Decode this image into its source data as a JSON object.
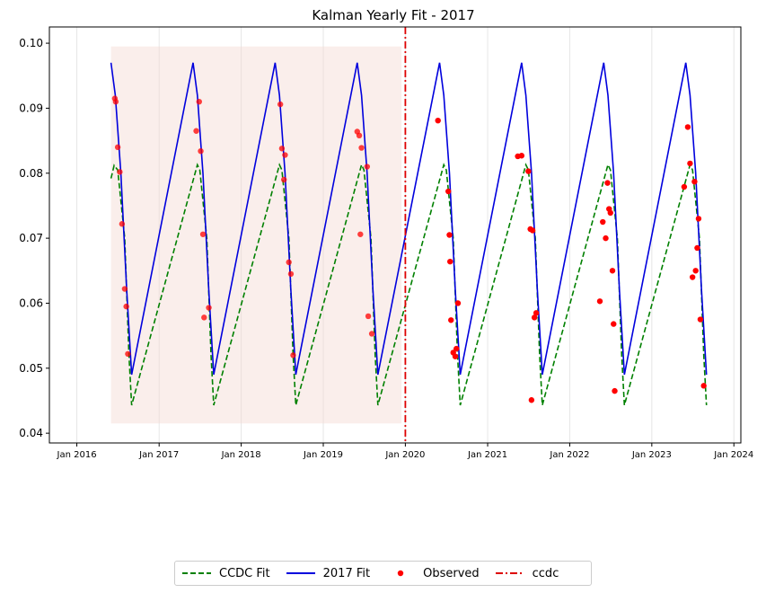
{
  "chart_data": {
    "type": "line",
    "title": "Kalman Yearly Fit - 2017",
    "xlabel": "",
    "ylabel": "",
    "xlim": [
      "2015-09-01",
      "2024-02-01"
    ],
    "ylim": [
      0.0385,
      0.1025
    ],
    "x_ticks": [
      {
        "date": "2016-01-01",
        "label": "Jan 2016"
      },
      {
        "date": "2017-01-01",
        "label": "Jan 2017"
      },
      {
        "date": "2018-01-01",
        "label": "Jan 2018"
      },
      {
        "date": "2019-01-01",
        "label": "Jan 2019"
      },
      {
        "date": "2020-01-01",
        "label": "Jan 2020"
      },
      {
        "date": "2021-01-01",
        "label": "Jan 2021"
      },
      {
        "date": "2022-01-01",
        "label": "Jan 2022"
      },
      {
        "date": "2023-01-01",
        "label": "Jan 2023"
      },
      {
        "date": "2024-01-01",
        "label": "Jan 2024"
      }
    ],
    "y_ticks": [
      0.04,
      0.05,
      0.06,
      0.07,
      0.08,
      0.09,
      0.1
    ],
    "y_tick_labels": [
      "0.04",
      "0.05",
      "0.06",
      "0.07",
      "0.08",
      "0.09",
      "0.10"
    ],
    "grid": "vertical",
    "legend_position": "bottom-center",
    "shaded_region": {
      "x": [
        "2016-06-01",
        "2019-12-15"
      ],
      "y": [
        0.0415,
        0.0995
      ],
      "color": "#f4d9d3"
    },
    "vline": {
      "name": "ccdc",
      "x": "2020-01-01",
      "color": "#dd0000"
    },
    "series": [
      {
        "name": "CCDC Fit",
        "style": "dashed",
        "color": "#008000",
        "points": [
          [
            "2016-06-01",
            0.0792
          ],
          [
            "2016-06-15",
            0.0812
          ],
          [
            "2016-07-01",
            0.0805
          ],
          [
            "2016-08-01",
            0.07
          ],
          [
            "2016-08-20",
            0.052
          ],
          [
            "2016-09-01",
            0.0443
          ],
          [
            "2017-06-20",
            0.0813
          ],
          [
            "2017-07-01",
            0.0805
          ],
          [
            "2017-08-01",
            0.07
          ],
          [
            "2017-08-20",
            0.052
          ],
          [
            "2017-09-01",
            0.0443
          ],
          [
            "2018-06-20",
            0.0813
          ],
          [
            "2018-07-01",
            0.0805
          ],
          [
            "2018-08-01",
            0.07
          ],
          [
            "2018-08-20",
            0.052
          ],
          [
            "2018-09-01",
            0.0443
          ],
          [
            "2019-06-20",
            0.0813
          ],
          [
            "2019-07-01",
            0.0805
          ],
          [
            "2019-08-01",
            0.07
          ],
          [
            "2019-08-20",
            0.052
          ],
          [
            "2019-09-01",
            0.0443
          ],
          [
            "2020-06-20",
            0.0813
          ],
          [
            "2020-07-01",
            0.0805
          ],
          [
            "2020-08-01",
            0.07
          ],
          [
            "2020-08-20",
            0.052
          ],
          [
            "2020-09-01",
            0.0443
          ],
          [
            "2021-06-20",
            0.0813
          ],
          [
            "2021-07-01",
            0.0805
          ],
          [
            "2021-08-01",
            0.07
          ],
          [
            "2021-08-20",
            0.052
          ],
          [
            "2021-09-01",
            0.0443
          ],
          [
            "2022-06-20",
            0.0813
          ],
          [
            "2022-07-01",
            0.0805
          ],
          [
            "2022-08-01",
            0.07
          ],
          [
            "2022-08-20",
            0.052
          ],
          [
            "2022-09-01",
            0.0443
          ],
          [
            "2023-06-20",
            0.0813
          ],
          [
            "2023-07-01",
            0.0805
          ],
          [
            "2023-08-01",
            0.07
          ],
          [
            "2023-08-20",
            0.052
          ],
          [
            "2023-09-01",
            0.0443
          ]
        ]
      },
      {
        "name": "2017 Fit",
        "style": "solid",
        "color": "#0000dd",
        "points": [
          [
            "2016-06-01",
            0.097
          ],
          [
            "2016-06-20",
            0.092
          ],
          [
            "2016-07-15",
            0.08
          ],
          [
            "2016-08-10",
            0.062
          ],
          [
            "2016-09-01",
            0.049
          ],
          [
            "2017-06-01",
            0.097
          ],
          [
            "2017-06-20",
            0.092
          ],
          [
            "2017-07-15",
            0.08
          ],
          [
            "2017-08-10",
            0.062
          ],
          [
            "2017-09-01",
            0.049
          ],
          [
            "2018-06-01",
            0.097
          ],
          [
            "2018-06-20",
            0.092
          ],
          [
            "2018-07-15",
            0.08
          ],
          [
            "2018-08-10",
            0.062
          ],
          [
            "2018-09-01",
            0.049
          ],
          [
            "2019-06-01",
            0.097
          ],
          [
            "2019-06-20",
            0.092
          ],
          [
            "2019-07-15",
            0.08
          ],
          [
            "2019-08-10",
            0.062
          ],
          [
            "2019-09-01",
            0.049
          ],
          [
            "2020-06-01",
            0.097
          ],
          [
            "2020-06-20",
            0.092
          ],
          [
            "2020-07-15",
            0.08
          ],
          [
            "2020-08-10",
            0.062
          ],
          [
            "2020-09-01",
            0.049
          ],
          [
            "2021-06-01",
            0.097
          ],
          [
            "2021-06-20",
            0.092
          ],
          [
            "2021-07-15",
            0.08
          ],
          [
            "2021-08-10",
            0.062
          ],
          [
            "2021-09-01",
            0.049
          ],
          [
            "2022-06-01",
            0.097
          ],
          [
            "2022-06-20",
            0.092
          ],
          [
            "2022-07-15",
            0.08
          ],
          [
            "2022-08-10",
            0.062
          ],
          [
            "2022-09-01",
            0.049
          ],
          [
            "2023-06-01",
            0.097
          ],
          [
            "2023-06-20",
            0.092
          ],
          [
            "2023-07-15",
            0.08
          ],
          [
            "2023-08-10",
            0.062
          ],
          [
            "2023-09-01",
            0.049
          ]
        ]
      },
      {
        "name": "Observed",
        "style": "scatter",
        "color": "#ff0000",
        "points": [
          [
            "2016-06-18",
            0.0915
          ],
          [
            "2016-06-22",
            0.091
          ],
          [
            "2016-07-01",
            0.084
          ],
          [
            "2016-07-10",
            0.0802
          ],
          [
            "2016-07-20",
            0.0722
          ],
          [
            "2016-08-01",
            0.0622
          ],
          [
            "2016-08-08",
            0.0595
          ],
          [
            "2016-08-15",
            0.0522
          ],
          [
            "2017-06-15",
            0.0865
          ],
          [
            "2017-06-28",
            0.091
          ],
          [
            "2017-07-05",
            0.0834
          ],
          [
            "2017-07-15",
            0.0706
          ],
          [
            "2017-07-20",
            0.0578
          ],
          [
            "2017-08-10",
            0.0593
          ],
          [
            "2018-06-24",
            0.0906
          ],
          [
            "2018-07-01",
            0.0838
          ],
          [
            "2018-07-10",
            0.079
          ],
          [
            "2018-07-15",
            0.0828
          ],
          [
            "2018-08-01",
            0.0663
          ],
          [
            "2018-08-10",
            0.0645
          ],
          [
            "2018-08-20",
            0.052
          ],
          [
            "2019-06-01",
            0.0864
          ],
          [
            "2019-06-10",
            0.0858
          ],
          [
            "2019-06-15",
            0.0706
          ],
          [
            "2019-06-20",
            0.0839
          ],
          [
            "2019-07-15",
            0.081
          ],
          [
            "2019-07-20",
            0.058
          ],
          [
            "2019-08-05",
            0.0553
          ],
          [
            "2020-05-25",
            0.0881
          ],
          [
            "2020-07-10",
            0.0772
          ],
          [
            "2020-07-15",
            0.0705
          ],
          [
            "2020-07-18",
            0.0664
          ],
          [
            "2020-07-22",
            0.0574
          ],
          [
            "2020-08-01",
            0.0524
          ],
          [
            "2020-08-10",
            0.0518
          ],
          [
            "2020-08-15",
            0.053
          ],
          [
            "2020-08-22",
            0.06
          ],
          [
            "2021-05-15",
            0.0826
          ],
          [
            "2021-06-01",
            0.0827
          ],
          [
            "2021-07-01",
            0.0803
          ],
          [
            "2021-07-10",
            0.0714
          ],
          [
            "2021-07-15",
            0.0451
          ],
          [
            "2021-07-20",
            0.0712
          ],
          [
            "2021-07-28",
            0.0578
          ],
          [
            "2021-08-05",
            0.0585
          ],
          [
            "2022-05-15",
            0.0603
          ],
          [
            "2022-05-28",
            0.0725
          ],
          [
            "2022-06-10",
            0.07
          ],
          [
            "2022-06-18",
            0.0785
          ],
          [
            "2022-06-25",
            0.0745
          ],
          [
            "2022-07-01",
            0.0739
          ],
          [
            "2022-07-10",
            0.065
          ],
          [
            "2022-07-15",
            0.0568
          ],
          [
            "2022-07-20",
            0.0465
          ],
          [
            "2023-05-25",
            0.0779
          ],
          [
            "2023-06-10",
            0.0871
          ],
          [
            "2023-06-20",
            0.0815
          ],
          [
            "2023-07-01",
            0.064
          ],
          [
            "2023-07-10",
            0.0787
          ],
          [
            "2023-07-15",
            0.065
          ],
          [
            "2023-07-22",
            0.0685
          ],
          [
            "2023-07-28",
            0.073
          ],
          [
            "2023-08-05",
            0.0575
          ],
          [
            "2023-08-20",
            0.0473
          ]
        ]
      }
    ],
    "legend": [
      {
        "label": "CCDC Fit",
        "kind": "dashed-line",
        "color": "#008000"
      },
      {
        "label": "2017 Fit",
        "kind": "line",
        "color": "#0000dd"
      },
      {
        "label": "Observed",
        "kind": "dot",
        "color": "#ff0000"
      },
      {
        "label": "ccdc",
        "kind": "dashdot-line",
        "color": "#dd0000"
      }
    ]
  }
}
